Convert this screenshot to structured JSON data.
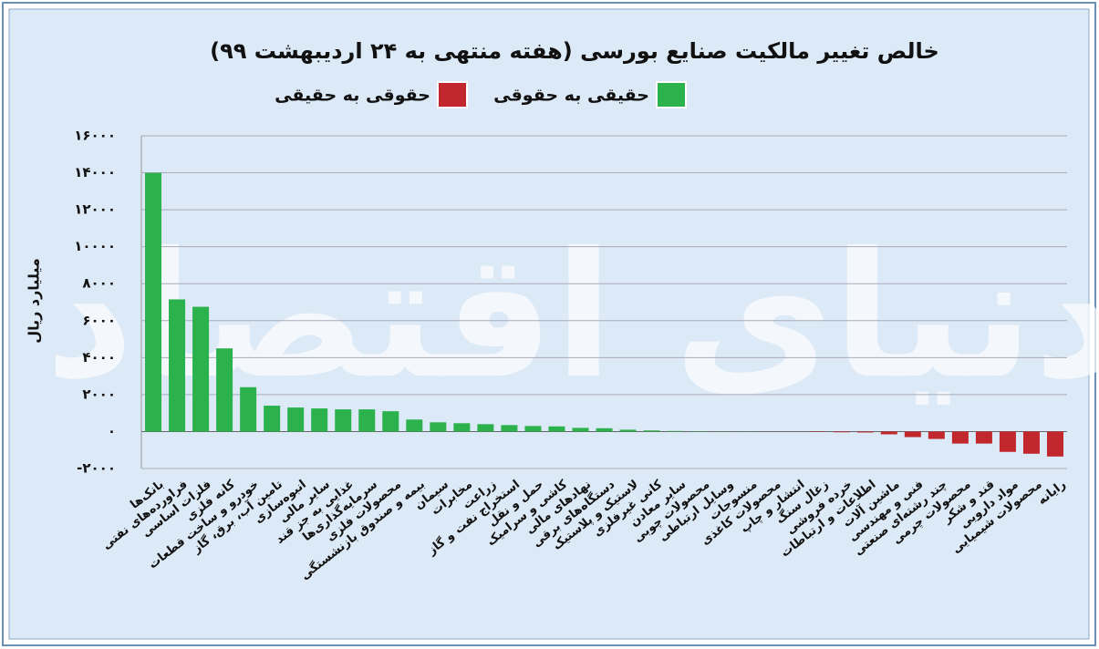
{
  "chart_data": {
    "type": "bar",
    "title": "خالص تغییر مالکیت صنایع بورسی (هفته منتهی به ۲۴ اردیبهشت ۹۹)",
    "watermark": "دنیای اقتصاد",
    "ylabel": "میلیارد ریال",
    "categories": [
      "بانک‌ها",
      "فراورده‌های نفتی",
      "فلزات اساسی",
      "کانه فلزی",
      "خودرو و ساخت قطعات",
      "تامین آب، برق، گاز",
      "انبوه‌سازی",
      "سایر مالی",
      "غذایی به جز قند",
      "سرمایه‌گذاری‌ها",
      "محصولات فلزی",
      "بیمه و صندوق بازنشستگی",
      "سیمان",
      "مخابرات",
      "زراعت",
      "استخراج نفت و گاز",
      "حمل و نقل",
      "کاشی و سرامیک",
      "نهادهای مالی",
      "دستگاه‌های برقی",
      "لاستیک و پلاستیک",
      "کانی غیرفلزی",
      "سایر معادن",
      "محصولات چوبی",
      "وسایل ارتباطی",
      "منسوجات",
      "محصولات کاغذی",
      "انتشار و چاپ",
      "زغال سنگ",
      "خرده فروشی",
      "اطلاعات و ارتباطات",
      "ماشین آلات",
      "فنی و مهندسی",
      "چند رشته‌ای صنعتی",
      "محصولات چرمی",
      "قند و شکر",
      "مواد دارویی",
      "محصولات شیمیایی",
      "رایانه"
    ],
    "values": [
      14000,
      7150,
      6750,
      4500,
      2400,
      1400,
      1300,
      1250,
      1200,
      1200,
      1100,
      650,
      500,
      450,
      400,
      350,
      300,
      280,
      200,
      180,
      100,
      60,
      30,
      20,
      10,
      5,
      0,
      0,
      -20,
      -40,
      -50,
      -150,
      -300,
      -400,
      -650,
      -650,
      -1100,
      -1200,
      -1350
    ],
    "legend": [
      {
        "name": "حقیقی به حقوقی",
        "color": "#2bb24c"
      },
      {
        "name": "حقوقی به حقیقی",
        "color": "#c1272d"
      }
    ],
    "ylim": [
      -2000,
      16000
    ],
    "yticks": [
      {
        "value": -2000,
        "label": "-۲۰۰۰"
      },
      {
        "value": 0,
        "label": "۰"
      },
      {
        "value": 2000,
        "label": "۲۰۰۰"
      },
      {
        "value": 4000,
        "label": "۴۰۰۰"
      },
      {
        "value": 6000,
        "label": "۶۰۰۰"
      },
      {
        "value": 8000,
        "label": "۸۰۰۰"
      },
      {
        "value": 10000,
        "label": "۱۰۰۰۰"
      },
      {
        "value": 12000,
        "label": "۱۲۰۰۰"
      },
      {
        "value": 14000,
        "label": "۱۴۰۰۰"
      },
      {
        "value": 16000,
        "label": "۱۶۰۰۰"
      }
    ],
    "grid": true
  }
}
